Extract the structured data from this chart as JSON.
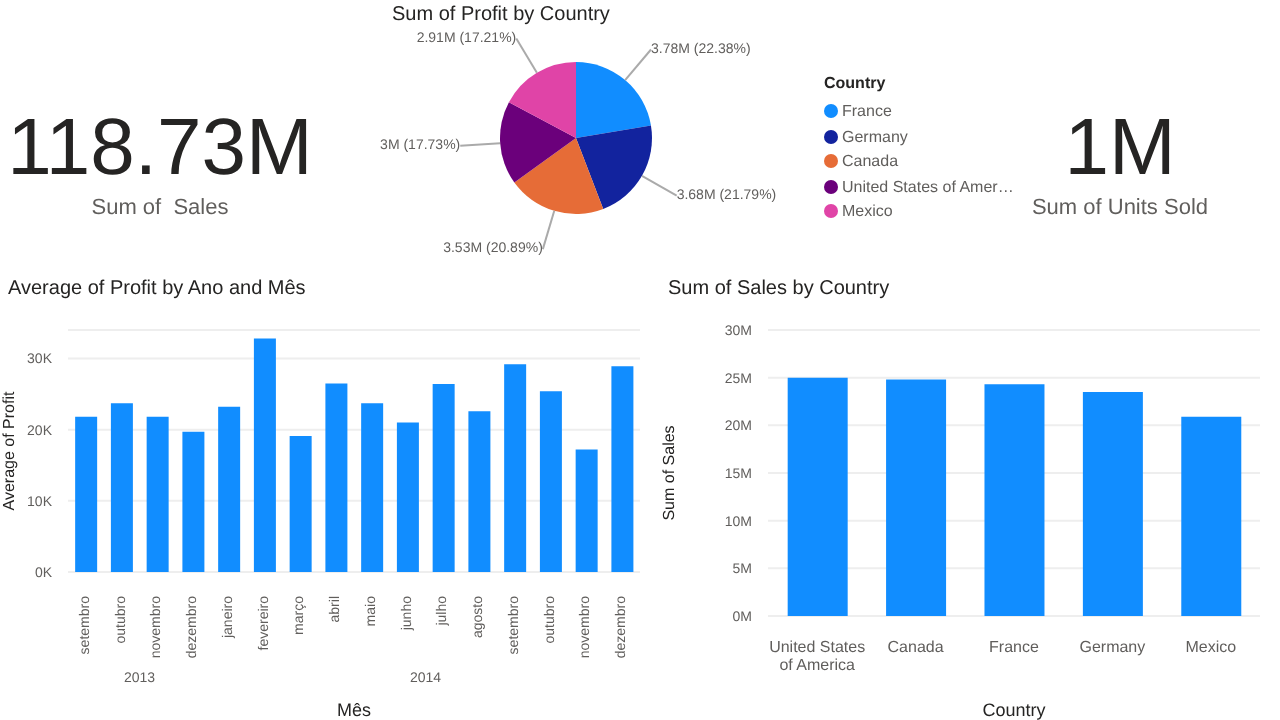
{
  "chart_data": [
    {
      "type": "other",
      "annotations": [
        "118.73M",
        "Sum of  Sales"
      ]
    },
    {
      "type": "pie",
      "title": "Sum of Profit by Country",
      "legend_title": "Country",
      "legend": "right",
      "categories": [
        "France",
        "Germany",
        "Canada",
        "United States of Amer…",
        "Mexico"
      ],
      "values": [
        22.38,
        21.79,
        20.89,
        17.73,
        17.21
      ],
      "value_labels": [
        "3.78M (22.38%)",
        "3.68M (21.79%)",
        "3.53M (20.89%)",
        "3M (17.73%)",
        "2.91M (17.21%)"
      ],
      "colors": [
        "#118dff",
        "#12239e",
        "#e66c37",
        "#6b007b",
        "#e044a7"
      ]
    },
    {
      "type": "other",
      "annotations": [
        "1M",
        "Sum of Units Sold"
      ]
    },
    {
      "type": "bar",
      "title": "Average of Profit by Ano and Mês",
      "xlabel": "Mês",
      "ylabel": "Average of Profit",
      "categories": [
        "setembro",
        "outubro",
        "novembro",
        "dezembro",
        "janeiro",
        "fevereiro",
        "março",
        "abril",
        "maio",
        "junho",
        "julho",
        "agosto",
        "setembro",
        "outubro",
        "novembro",
        "dezembro"
      ],
      "values": [
        21800,
        23700,
        21800,
        19700,
        23200,
        32800,
        19100,
        26500,
        23700,
        21000,
        26400,
        22600,
        29200,
        25400,
        17200,
        28900
      ],
      "color": "#118dff",
      "ylim": [
        0,
        34000
      ],
      "yticks": [
        {
          "value": 0,
          "label": "0K"
        },
        {
          "value": 10000,
          "label": "10K"
        },
        {
          "value": 20000,
          "label": "20K"
        },
        {
          "value": 30000,
          "label": "30K"
        }
      ],
      "grid": "y",
      "annotations": [
        "2013",
        "2014"
      ]
    },
    {
      "type": "bar",
      "title": "Sum of Sales by Country",
      "xlabel": "Country",
      "ylabel": "Sum of Sales",
      "categories": [
        "United States of America",
        "Canada",
        "France",
        "Germany",
        "Mexico"
      ],
      "values": [
        25000000,
        24800000,
        24300000,
        23500000,
        20900000
      ],
      "color": "#118dff",
      "ylim": [
        0,
        30000000
      ],
      "yticks": [
        {
          "value": 0,
          "label": "0M"
        },
        {
          "value": 5000000,
          "label": "5M"
        },
        {
          "value": 10000000,
          "label": "10M"
        },
        {
          "value": 15000000,
          "label": "15M"
        },
        {
          "value": 20000000,
          "label": "20M"
        },
        {
          "value": 25000000,
          "label": "25M"
        },
        {
          "value": 30000000,
          "label": "30M"
        }
      ],
      "grid": "y"
    }
  ]
}
